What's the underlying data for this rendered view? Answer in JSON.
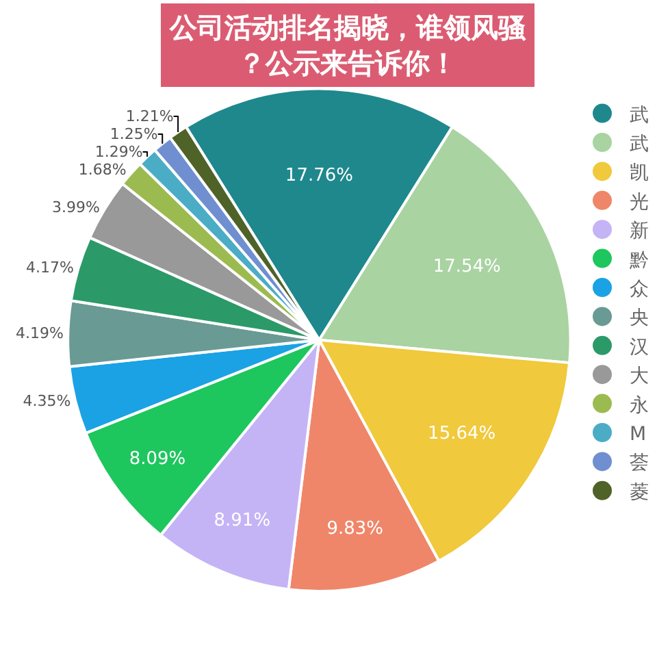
{
  "chart_data": {
    "type": "pie",
    "title": "公司活动排名揭晓，谁领风骚？公示来告诉你！",
    "categories": [
      "武",
      "武",
      "凯",
      "光",
      "新",
      "黔",
      "众",
      "央",
      "汉",
      "大",
      "永",
      "M",
      "荟",
      "菱"
    ],
    "values": [
      17.76,
      17.54,
      15.64,
      9.83,
      8.91,
      8.09,
      4.35,
      4.19,
      4.17,
      3.99,
      1.68,
      1.29,
      1.25,
      1.21
    ],
    "colors": [
      "#1e888d",
      "#a9d3a1",
      "#f0c93c",
      "#ef8669",
      "#c4b4f6",
      "#1ec65e",
      "#1aa2e4",
      "#6a9a94",
      "#2b9a68",
      "#999999",
      "#9bbb50",
      "#4bacc6",
      "#6f8fd0",
      "#4f6228"
    ],
    "value_labels": [
      "17.76%",
      "17.54%",
      "15.64%",
      "9.83%",
      "8.91%",
      "8.09%",
      "4.35%",
      "4.19%",
      "4.17%",
      "3.99%",
      "1.68%",
      "1.29%",
      "1.25%",
      "1.21%"
    ],
    "legend": "right"
  }
}
